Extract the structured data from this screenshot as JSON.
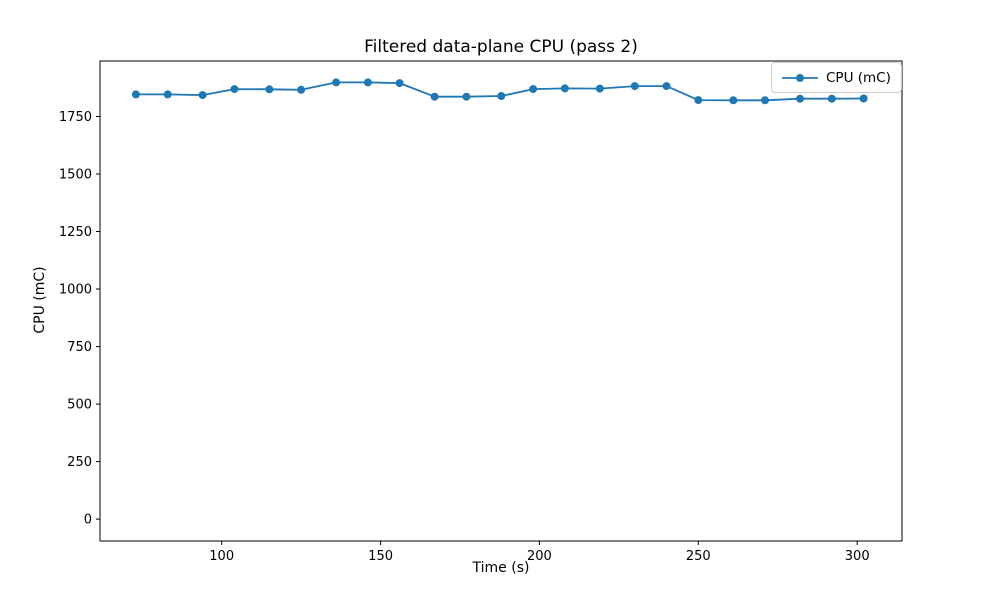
{
  "chart_data": {
    "type": "line",
    "title": "Filtered data-plane CPU (pass 2)",
    "xlabel": "Time (s)",
    "ylabel": "CPU (mC)",
    "xlim": [
      61.7,
      314.1
    ],
    "ylim": [
      -95,
      1991
    ],
    "x_ticks": [
      100,
      150,
      200,
      250,
      300
    ],
    "y_ticks": [
      0,
      250,
      500,
      750,
      1000,
      1250,
      1500,
      1750
    ],
    "grid": false,
    "background_color": "#ffffff",
    "spine_color": "#000000",
    "legend": {
      "position": "upper right",
      "entries": [
        "CPU (mC)"
      ]
    },
    "series": [
      {
        "name": "CPU (mC)",
        "color": "#1f77b4",
        "marker": "circle",
        "line_style": "solid",
        "x": [
          73,
          83,
          94,
          104,
          115,
          125,
          136,
          146,
          156,
          167,
          177,
          188,
          198,
          208,
          219,
          230,
          240,
          250,
          261,
          271,
          282,
          292,
          302
        ],
        "y": [
          1846,
          1846,
          1843,
          1869,
          1868,
          1866,
          1898,
          1898,
          1895,
          1836,
          1836,
          1839,
          1869,
          1872,
          1871,
          1882,
          1882,
          1821,
          1820,
          1820,
          1827,
          1827,
          1828
        ]
      }
    ]
  }
}
